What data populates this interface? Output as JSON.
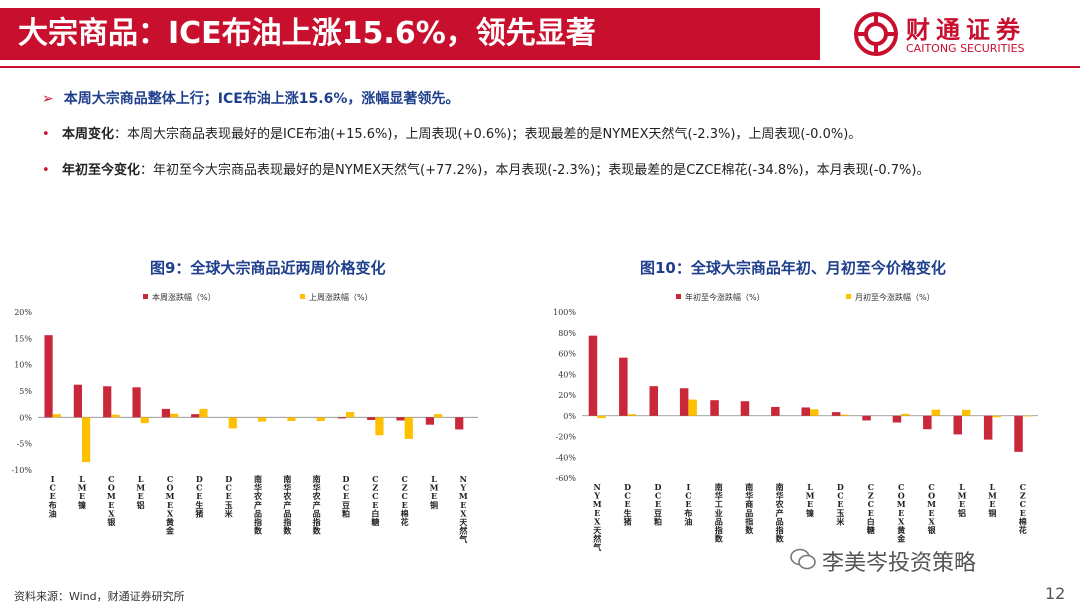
{
  "header": {
    "title": "大宗商品：ICE布油上涨15.6%，领先显著",
    "logo_cn": "财通证券",
    "logo_en": "CAITONG SECURITIES"
  },
  "summary": "本周大宗商品整体上行；ICE布油上涨15.6%，涨幅显著领先。",
  "bullets": [
    {
      "label": "本周变化",
      "text": "：本周大宗商品表现最好的是ICE布油(+15.6%)，上周表现(+0.6%)；表现最差的是NYMEX天然气(-2.3%)，上周表现(-0.0%)。"
    },
    {
      "label": "年初至今变化",
      "text": "：年初至今大宗商品表现最好的是NYMEX天然气(+77.2%)，本月表现(-2.3%)；表现最差的是CZCE棉花(-34.8%)，本月表现(-0.7%)。"
    }
  ],
  "footer": {
    "source": "资料来源：Wind，财通证券研究所",
    "watermark": "李美岑投资策略",
    "page": "12"
  },
  "colors": {
    "red": "#c8283a",
    "yellow": "#ffc000",
    "title_blue": "#1f3f8c"
  },
  "chart_data": [
    {
      "type": "bar",
      "title": "图9：全球大宗商品近两周价格变化",
      "categories": [
        "ICE布油",
        "LME镍",
        "COMEX银",
        "LME铝",
        "COMEX黄金",
        "DCE生猪",
        "DCE玉米",
        "南华农产品指数",
        "南华农产品指数",
        "南华农产品指数",
        "DCE豆粕",
        "CZCE白糖",
        "CZCE棉花",
        "LME铜",
        "NYMEX天然气"
      ],
      "series": [
        {
          "name": "本周涨跌幅（%）",
          "values": [
            15.6,
            6.2,
            5.9,
            5.7,
            1.6,
            0.6,
            0.0,
            0.0,
            0.0,
            0.0,
            -0.2,
            -0.5,
            -0.6,
            -1.4,
            -2.3
          ]
        },
        {
          "name": "上周涨跌幅（%）",
          "values": [
            0.6,
            -8.5,
            0.5,
            -1.1,
            0.7,
            1.6,
            -2.1,
            -0.8,
            -0.7,
            -0.7,
            1.0,
            -3.4,
            -4.1,
            0.6,
            -0.0
          ]
        }
      ],
      "ylim": [
        -10,
        20
      ],
      "yticks": [
        -10,
        -5,
        0,
        5,
        10,
        15,
        20
      ],
      "tick_suffix": "%",
      "legend": "top"
    },
    {
      "type": "bar",
      "title": "图10：全球大宗商品年初、月初至今价格变化",
      "categories": [
        "NYMEX天然气",
        "DCE生猪",
        "DCE豆粕",
        "ICE布油",
        "南华工业品指数",
        "南华商品指数",
        "南华农产品指数",
        "LME镍",
        "DCE玉米",
        "CZCE白糖",
        "COMEX黄金",
        "COMEX银",
        "LME铝",
        "LME铜",
        "CZCE棉花"
      ],
      "series": [
        {
          "name": "年初至今涨跌幅（%）",
          "values": [
            77.2,
            56.0,
            28.5,
            26.5,
            15.0,
            14.0,
            8.5,
            8.0,
            3.5,
            -4.5,
            -6.5,
            -13.0,
            -18.0,
            -23.0,
            -34.8
          ]
        },
        {
          "name": "月初至今涨跌幅（%）",
          "values": [
            -2.3,
            1.5,
            0.0,
            15.6,
            0.0,
            0.0,
            0.0,
            6.2,
            1.0,
            0.0,
            1.8,
            5.9,
            5.7,
            -1.4,
            -0.7
          ]
        }
      ],
      "ylim": [
        -60,
        100
      ],
      "yticks": [
        -60,
        -40,
        -20,
        0,
        20,
        40,
        60,
        80,
        100
      ],
      "tick_suffix": "%",
      "legend": "top"
    }
  ]
}
